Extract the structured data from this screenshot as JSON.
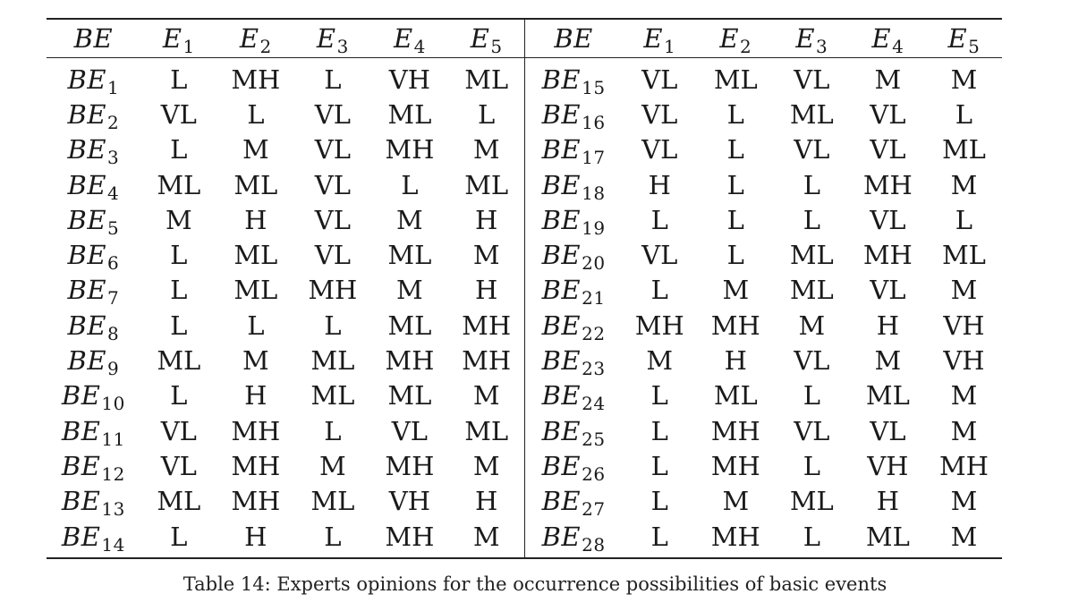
{
  "table": {
    "headers": [
      {
        "base": "BE",
        "sub": ""
      },
      {
        "base": "E",
        "sub": "1"
      },
      {
        "base": "E",
        "sub": "2"
      },
      {
        "base": "E",
        "sub": "3"
      },
      {
        "base": "E",
        "sub": "4"
      },
      {
        "base": "E",
        "sub": "5"
      },
      {
        "base": "BE",
        "sub": ""
      },
      {
        "base": "E",
        "sub": "1"
      },
      {
        "base": "E",
        "sub": "2"
      },
      {
        "base": "E",
        "sub": "3"
      },
      {
        "base": "E",
        "sub": "4"
      },
      {
        "base": "E",
        "sub": "5"
      }
    ],
    "rows": [
      {
        "left_be": {
          "base": "BE",
          "sub": "1"
        },
        "left": [
          "L",
          "MH",
          "L",
          "VH",
          "ML"
        ],
        "right_be": {
          "base": "BE",
          "sub": "15"
        },
        "right": [
          "VL",
          "ML",
          "VL",
          "M",
          "M"
        ]
      },
      {
        "left_be": {
          "base": "BE",
          "sub": "2"
        },
        "left": [
          "VL",
          "L",
          "VL",
          "ML",
          "L"
        ],
        "right_be": {
          "base": "BE",
          "sub": "16"
        },
        "right": [
          "VL",
          "L",
          "ML",
          "VL",
          "L"
        ]
      },
      {
        "left_be": {
          "base": "BE",
          "sub": "3"
        },
        "left": [
          "L",
          "M",
          "VL",
          "MH",
          "M"
        ],
        "right_be": {
          "base": "BE",
          "sub": "17"
        },
        "right": [
          "VL",
          "L",
          "VL",
          "VL",
          "ML"
        ]
      },
      {
        "left_be": {
          "base": "BE",
          "sub": "4"
        },
        "left": [
          "ML",
          "ML",
          "VL",
          "L",
          "ML"
        ],
        "right_be": {
          "base": "BE",
          "sub": "18"
        },
        "right": [
          "H",
          "L",
          "L",
          "MH",
          "M"
        ]
      },
      {
        "left_be": {
          "base": "BE",
          "sub": "5"
        },
        "left": [
          "M",
          "H",
          "VL",
          "M",
          "H"
        ],
        "right_be": {
          "base": "BE",
          "sub": "19"
        },
        "right": [
          "L",
          "L",
          "L",
          "VL",
          "L"
        ]
      },
      {
        "left_be": {
          "base": "BE",
          "sub": "6"
        },
        "left": [
          "L",
          "ML",
          "VL",
          "ML",
          "M"
        ],
        "right_be": {
          "base": "BE",
          "sub": "20"
        },
        "right": [
          "VL",
          "L",
          "ML",
          "MH",
          "ML"
        ]
      },
      {
        "left_be": {
          "base": "BE",
          "sub": "7"
        },
        "left": [
          "L",
          "ML",
          "MH",
          "M",
          "H"
        ],
        "right_be": {
          "base": "BE",
          "sub": "21"
        },
        "right": [
          "L",
          "M",
          "ML",
          "VL",
          "M"
        ]
      },
      {
        "left_be": {
          "base": "BE",
          "sub": "8"
        },
        "left": [
          "L",
          "L",
          "L",
          "ML",
          "MH"
        ],
        "right_be": {
          "base": "BE",
          "sub": "22"
        },
        "right": [
          "MH",
          "MH",
          "M",
          "H",
          "VH"
        ]
      },
      {
        "left_be": {
          "base": "BE",
          "sub": "9"
        },
        "left": [
          "ML",
          "M",
          "ML",
          "MH",
          "MH"
        ],
        "right_be": {
          "base": "BE",
          "sub": "23"
        },
        "right": [
          "M",
          "H",
          "VL",
          "M",
          "VH"
        ]
      },
      {
        "left_be": {
          "base": "BE",
          "sub": "10"
        },
        "left": [
          "L",
          "H",
          "ML",
          "ML",
          "M"
        ],
        "right_be": {
          "base": "BE",
          "sub": "24"
        },
        "right": [
          "L",
          "ML",
          "L",
          "ML",
          "M"
        ]
      },
      {
        "left_be": {
          "base": "BE",
          "sub": "11"
        },
        "left": [
          "VL",
          "MH",
          "L",
          "VL",
          "ML"
        ],
        "right_be": {
          "base": "BE",
          "sub": "25"
        },
        "right": [
          "L",
          "MH",
          "VL",
          "VL",
          "M"
        ]
      },
      {
        "left_be": {
          "base": "BE",
          "sub": "12"
        },
        "left": [
          "VL",
          "MH",
          "M",
          "MH",
          "M"
        ],
        "right_be": {
          "base": "BE",
          "sub": "26"
        },
        "right": [
          "L",
          "MH",
          "L",
          "VH",
          "MH"
        ]
      },
      {
        "left_be": {
          "base": "BE",
          "sub": "13"
        },
        "left": [
          "ML",
          "MH",
          "ML",
          "VH",
          "H"
        ],
        "right_be": {
          "base": "BE",
          "sub": "27"
        },
        "right": [
          "L",
          "M",
          "ML",
          "H",
          "M"
        ]
      },
      {
        "left_be": {
          "base": "BE",
          "sub": "14"
        },
        "left": [
          "L",
          "H",
          "L",
          "MH",
          "M"
        ],
        "right_be": {
          "base": "BE",
          "sub": "28"
        },
        "right": [
          "L",
          "MH",
          "L",
          "ML",
          "M"
        ]
      }
    ]
  },
  "caption": "Table 14: Experts opinions for the occurrence possibilities of basic events"
}
